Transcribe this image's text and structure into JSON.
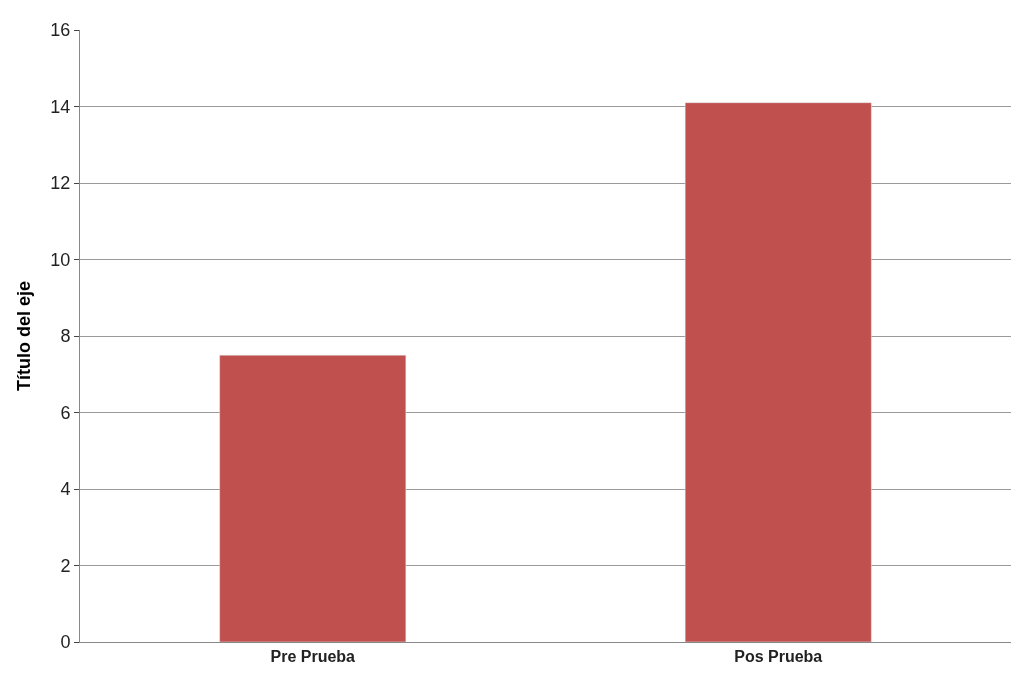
{
  "chart_data": {
    "type": "bar",
    "ylabel": "Título del eje",
    "categories": [
      "Pre Prueba",
      "Pos Prueba"
    ],
    "values": [
      7.5,
      14.1
    ],
    "color": "#c0504d",
    "ylim": [
      0,
      16
    ],
    "yticks": [
      0,
      2,
      4,
      6,
      8,
      10,
      12,
      14,
      16
    ],
    "grid": "y"
  }
}
